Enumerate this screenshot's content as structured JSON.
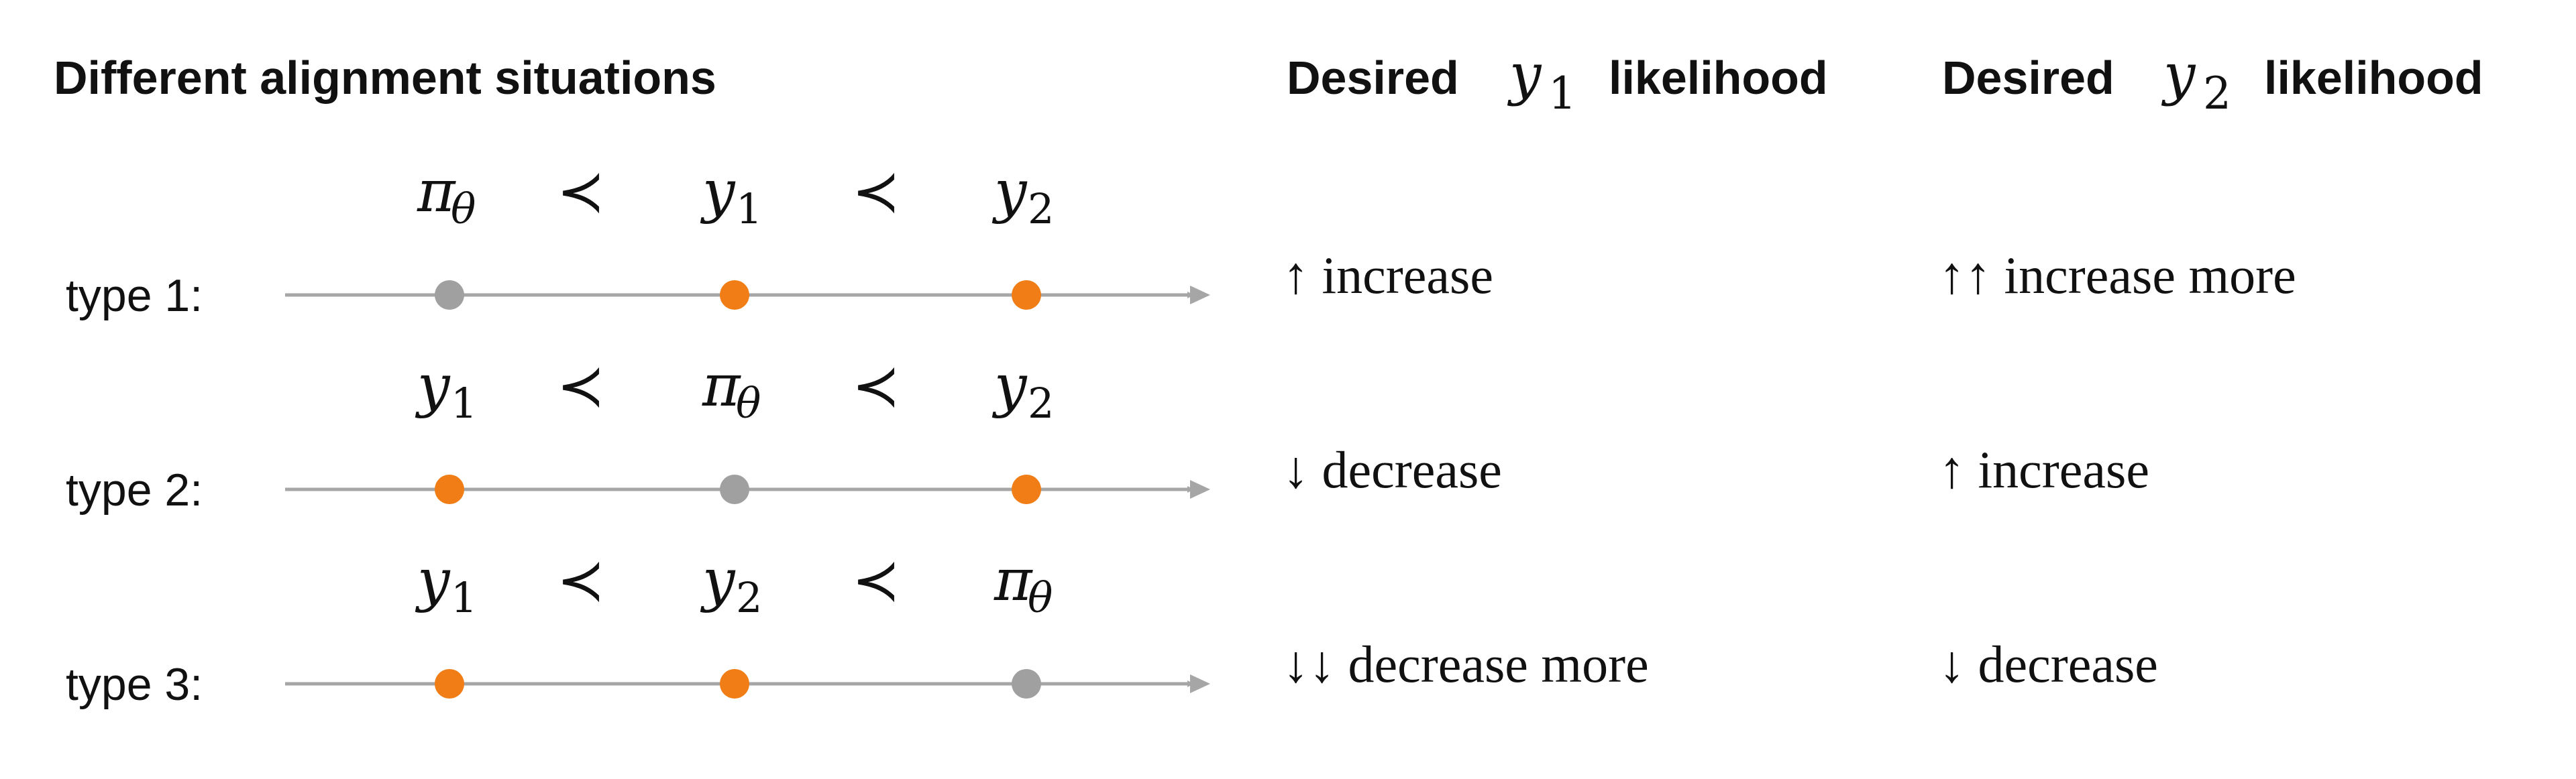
{
  "title": "Different alignment situations",
  "headers": [
    {
      "prefix": "Desired",
      "var": "y",
      "sub": "1",
      "suffix": "likelihood"
    },
    {
      "prefix": "Desired",
      "var": "y",
      "sub": "2",
      "suffix": "likelihood"
    }
  ],
  "prec_symbol": "≺",
  "colors": {
    "policy": "#a0a0a0",
    "response": "#f07d15",
    "line": "#a6a6a6",
    "text": "#111111"
  },
  "rows": [
    {
      "label": "type 1:",
      "order": [
        {
          "var": "π",
          "sub": "θ"
        },
        {
          "var": "y",
          "sub": "1"
        },
        {
          "var": "y",
          "sub": "2"
        }
      ],
      "points": [
        "policy",
        "response",
        "response"
      ],
      "y1_effect": "↑ increase",
      "y2_effect": "↑↑ increase more"
    },
    {
      "label": "type 2:",
      "order": [
        {
          "var": "y",
          "sub": "1"
        },
        {
          "var": "π",
          "sub": "θ"
        },
        {
          "var": "y",
          "sub": "2"
        }
      ],
      "points": [
        "response",
        "policy",
        "response"
      ],
      "y1_effect": "↓ decrease",
      "y2_effect": "↑ increase"
    },
    {
      "label": "type 3:",
      "order": [
        {
          "var": "y",
          "sub": "1"
        },
        {
          "var": "y",
          "sub": "2"
        },
        {
          "var": "π",
          "sub": "θ"
        }
      ],
      "points": [
        "response",
        "response",
        "policy"
      ],
      "y1_effect": "↓↓ decrease more",
      "y2_effect": "↓ decrease"
    }
  ]
}
